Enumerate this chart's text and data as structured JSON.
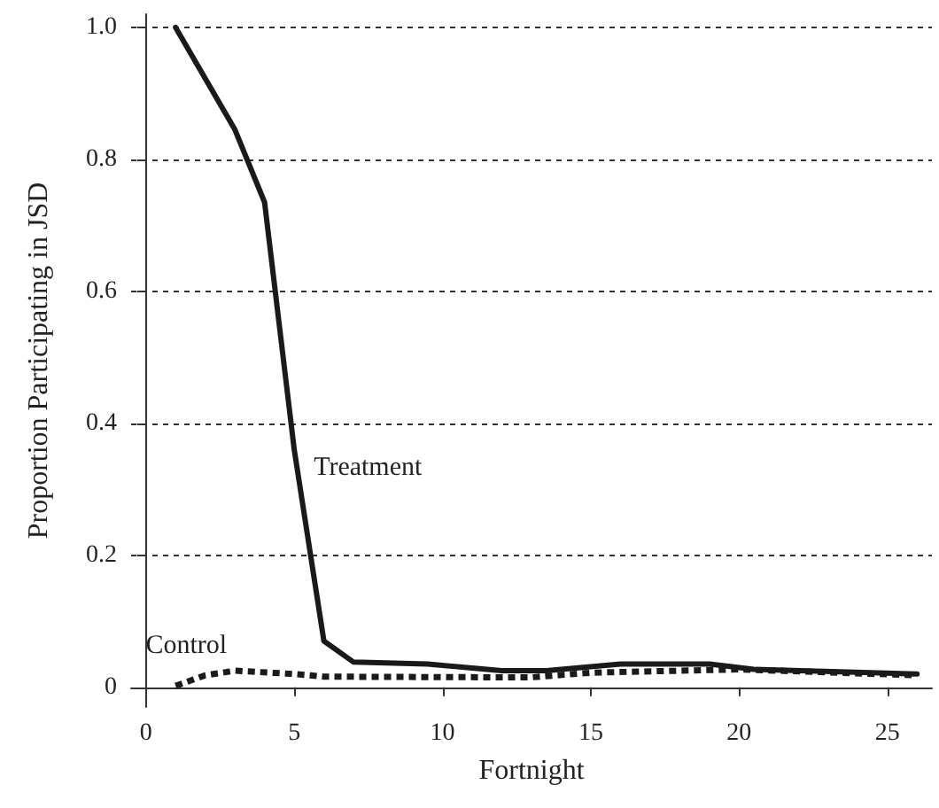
{
  "chart_data": {
    "type": "line",
    "xlabel": "Fortnight",
    "ylabel": "Proportion Participating in JSD",
    "xlim": [
      -0.5,
      26.5
    ],
    "xticks": [
      0,
      5,
      10,
      15,
      20,
      25
    ],
    "ylim": [
      -0.03,
      1.02
    ],
    "yticks": [
      0,
      0.2,
      0.4,
      0.6,
      0.8,
      {
        "value": 1,
        "label": "1.0"
      }
    ],
    "grid": "y",
    "legend": false,
    "marker": "none",
    "series": [
      {
        "name": "Treatment",
        "color": "#1a1a1a",
        "line_style": "solid",
        "x": [
          1,
          3,
          4,
          5,
          6,
          7,
          9.5,
          12,
          13.5,
          16,
          19,
          20.5,
          26
        ],
        "values": [
          1.0,
          0.845,
          0.735,
          0.36,
          0.07,
          0.038,
          0.035,
          0.025,
          0.025,
          0.035,
          0.035,
          0.027,
          0.02
        ]
      },
      {
        "name": "Control",
        "color": "#1a1a1a",
        "line_style": "dashed",
        "x": [
          1,
          2,
          3,
          5,
          6,
          12,
          13,
          15,
          20,
          26
        ],
        "values": [
          0.002,
          0.018,
          0.025,
          0.02,
          0.016,
          0.015,
          0.015,
          0.022,
          0.027,
          0.018
        ]
      }
    ]
  }
}
